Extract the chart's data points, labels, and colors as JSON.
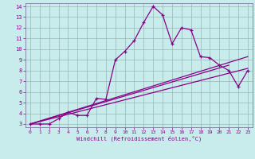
{
  "xlabel": "Windchill (Refroidissement éolien,°C)",
  "background_color": "#c8ecec",
  "line_color": "#880088",
  "xlim": [
    -0.5,
    23.5
  ],
  "ylim": [
    2.7,
    14.3
  ],
  "xticks": [
    0,
    1,
    2,
    3,
    4,
    5,
    6,
    7,
    8,
    9,
    10,
    11,
    12,
    13,
    14,
    15,
    16,
    17,
    18,
    19,
    20,
    21,
    22,
    23
  ],
  "yticks": [
    3,
    4,
    5,
    6,
    7,
    8,
    9,
    10,
    11,
    12,
    13,
    14
  ],
  "series1_x": [
    0,
    1,
    2,
    3,
    4,
    5,
    6,
    7,
    8,
    9,
    10,
    11,
    12,
    13,
    14,
    15,
    16,
    17,
    18,
    19,
    20,
    21,
    22,
    23
  ],
  "series1_y": [
    3.0,
    3.0,
    3.0,
    3.5,
    4.1,
    3.8,
    3.8,
    5.4,
    5.3,
    9.0,
    9.8,
    10.8,
    12.5,
    14.0,
    13.2,
    10.5,
    12.0,
    11.8,
    9.3,
    9.2,
    8.5,
    8.0,
    6.5,
    8.0
  ],
  "series2_x": [
    0,
    23
  ],
  "series2_y": [
    3.0,
    9.3
  ],
  "series3_x": [
    0,
    23
  ],
  "series3_y": [
    3.0,
    8.2
  ],
  "series4_x": [
    0,
    21
  ],
  "series4_y": [
    3.0,
    8.5
  ],
  "grid_color": "#9ab8b8",
  "spine_color": "#7a7a9a"
}
